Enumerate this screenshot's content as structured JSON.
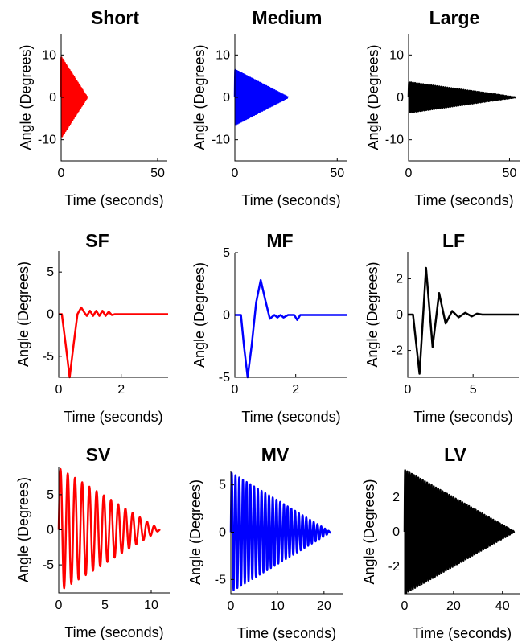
{
  "colors": {
    "red": "#ff0000",
    "blue": "#0000ff",
    "black": "#000000"
  },
  "chart_data": [
    {
      "type": "line",
      "title": "Short",
      "xlabel": "Time (seconds)",
      "ylabel": "Angle (Degrees)",
      "xlim": [
        0,
        55
      ],
      "ylim": [
        -15,
        15
      ],
      "xticks": [
        0,
        50
      ],
      "yticks": [
        -10,
        0,
        10
      ],
      "series": [
        {
          "color": "#ff0000",
          "signal": "oscillation",
          "amplitude": 9.5,
          "start": 0,
          "end": 13.5,
          "period": 0.6
        }
      ]
    },
    {
      "type": "line",
      "title": "Medium",
      "xlabel": "Time (seconds)",
      "ylabel": "Angle (Degrees)",
      "xlim": [
        0,
        55
      ],
      "ylim": [
        -15,
        15
      ],
      "xticks": [
        0,
        50
      ],
      "yticks": [
        -10,
        0,
        10
      ],
      "series": [
        {
          "color": "#0000ff",
          "signal": "oscillation",
          "amplitude": 6.5,
          "start": 0,
          "end": 26,
          "period": 0.8
        }
      ]
    },
    {
      "type": "line",
      "title": "Large",
      "xlabel": "Time (seconds)",
      "ylabel": "Angle (Degrees)",
      "xlim": [
        0,
        55
      ],
      "ylim": [
        -15,
        15
      ],
      "xticks": [
        0,
        50
      ],
      "yticks": [
        -10,
        0,
        10
      ],
      "series": [
        {
          "color": "#000000",
          "signal": "oscillation",
          "amplitude": 3.6,
          "start": 0,
          "end": 53,
          "period": 1.0
        }
      ]
    },
    {
      "type": "line",
      "title": "SF",
      "xlabel": "Time (seconds)",
      "ylabel": "Angle (Degrees)",
      "xlim": [
        0,
        3.5
      ],
      "ylim": [
        -7.5,
        7.5
      ],
      "xticks": [
        0,
        2
      ],
      "yticks": [
        -5,
        0,
        5
      ],
      "series": [
        {
          "color": "#ff0000",
          "x": [
            0,
            0.1,
            0.22,
            0.35,
            0.48,
            0.6,
            0.72,
            0.82,
            0.9,
            1.0,
            1.1,
            1.2,
            1.3,
            1.4,
            1.5,
            1.6,
            1.7,
            1.8,
            3.5
          ],
          "y": [
            0,
            0,
            -3.5,
            -7.5,
            -3.5,
            0,
            0.8,
            0.2,
            -0.2,
            0.4,
            -0.2,
            0.4,
            -0.2,
            0.4,
            -0.2,
            0.3,
            -0.1,
            0,
            0
          ]
        }
      ]
    },
    {
      "type": "line",
      "title": "MF",
      "xlabel": "Time (seconds)",
      "ylabel": "Angle (Degrees)",
      "xlim": [
        0,
        3.7
      ],
      "ylim": [
        -5,
        5
      ],
      "xticks": [
        0,
        2
      ],
      "yticks": [
        -5,
        0,
        5
      ],
      "series": [
        {
          "color": "#0000ff",
          "x": [
            0,
            0.2,
            0.3,
            0.42,
            0.55,
            0.7,
            0.85,
            1.0,
            1.15,
            1.3,
            1.4,
            1.5,
            1.6,
            1.75,
            1.95,
            2.05,
            2.15,
            3.7
          ],
          "y": [
            0,
            0,
            -2.5,
            -5,
            -2.5,
            1.0,
            2.8,
            1.2,
            -0.3,
            0,
            -0.2,
            0,
            -0.2,
            0,
            0,
            -0.4,
            0,
            0
          ]
        }
      ]
    },
    {
      "type": "line",
      "title": "LF",
      "xlabel": "Time (seconds)",
      "ylabel": "Angle (Degrees)",
      "xlim": [
        0,
        8.5
      ],
      "ylim": [
        -3.5,
        3.5
      ],
      "xticks": [
        0,
        5
      ],
      "yticks": [
        -2,
        0,
        2
      ],
      "series": [
        {
          "color": "#000000",
          "x": [
            0,
            0.4,
            0.9,
            1.4,
            1.9,
            2.4,
            2.9,
            3.4,
            3.9,
            4.4,
            4.9,
            5.3,
            5.7,
            8.5
          ],
          "y": [
            0,
            0,
            -3.3,
            2.6,
            -1.8,
            1.2,
            -0.5,
            0.2,
            -0.15,
            0.1,
            -0.1,
            0.05,
            0,
            0
          ]
        }
      ]
    },
    {
      "type": "line",
      "title": "SV",
      "xlabel": "Time (seconds)",
      "ylabel": "Angle (Degrees)",
      "xlim": [
        0,
        12
      ],
      "ylim": [
        -9,
        9
      ],
      "xticks": [
        0,
        5,
        10
      ],
      "yticks": [
        -5,
        0,
        5
      ],
      "series": [
        {
          "color": "#ff0000",
          "signal": "oscillation",
          "amplitude": 8.8,
          "start": 0,
          "end": 11,
          "period": 0.78
        }
      ]
    },
    {
      "type": "line",
      "title": "MV",
      "xlabel": "Time (seconds)",
      "ylabel": "Angle (Degrees)",
      "xlim": [
        0,
        24
      ],
      "ylim": [
        -6.5,
        6.5
      ],
      "xticks": [
        0,
        10,
        20
      ],
      "yticks": [
        -5,
        0,
        5
      ],
      "series": [
        {
          "color": "#0000ff",
          "signal": "oscillation",
          "amplitude": 6.3,
          "start": 0,
          "end": 21.5,
          "period": 0.8
        }
      ]
    },
    {
      "type": "line",
      "title": "LV",
      "xlabel": "Time (seconds)",
      "ylabel": "Angle (Degrees)",
      "xlim": [
        0,
        47
      ],
      "ylim": [
        -3.6,
        3.6
      ],
      "xticks": [
        0,
        20,
        40
      ],
      "yticks": [
        -2,
        0,
        2
      ],
      "series": [
        {
          "color": "#000000",
          "signal": "oscillation",
          "amplitude": 3.6,
          "start": 0,
          "end": 45,
          "period": 0.9
        }
      ]
    }
  ]
}
